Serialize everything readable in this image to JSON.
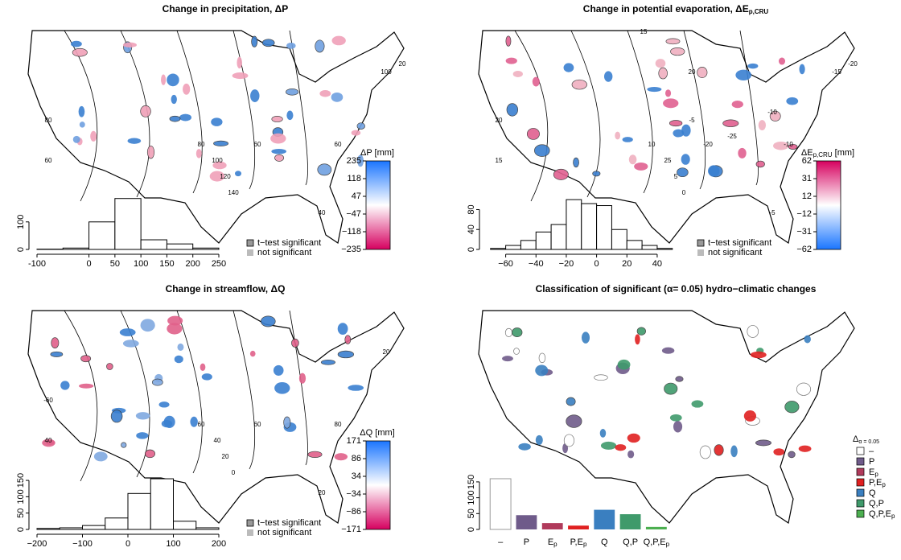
{
  "chart_data": [
    {
      "type": "histogram",
      "title": "Change in precipitation, ΔP",
      "bins": [
        -100,
        -50,
        0,
        50,
        100,
        150,
        200,
        250
      ],
      "counts": [
        1,
        5,
        100,
        185,
        35,
        20,
        5
      ],
      "xlim": [
        -100,
        250
      ],
      "xticks": [
        -100,
        0,
        50,
        100,
        150,
        200,
        250
      ],
      "ylim": [
        0,
        190
      ],
      "yticks": [
        0,
        100
      ],
      "colorbar_label": "ΔP [mm]",
      "colorbar_ticks": [
        235,
        118,
        47,
        {
          "value": -47,
          "label": "−47"
        },
        {
          "value": -118,
          "label": "−118"
        },
        {
          "value": -235,
          "label": "−235"
        }
      ],
      "colorbar_colors": [
        "#d6005f",
        "#ffffff",
        "#1a75ff"
      ],
      "legend": [
        "t−test significant",
        "not significant"
      ],
      "contour_labels": [
        "80",
        "60",
        "80",
        "60",
        "100",
        "120",
        "140",
        "40",
        "60",
        "100",
        "20"
      ]
    },
    {
      "type": "histogram",
      "title": "Change in potential evaporation, ΔE",
      "title_sub": "p,CRU",
      "bins": [
        -70,
        -60,
        -50,
        -40,
        -30,
        -20,
        -10,
        0,
        10,
        20,
        30,
        40,
        50
      ],
      "counts": [
        2,
        8,
        18,
        35,
        50,
        100,
        92,
        88,
        40,
        18,
        8,
        2
      ],
      "xlim": [
        -72,
        48
      ],
      "xticks": [
        {
          "value": -60,
          "label": "−60"
        },
        {
          "value": -40,
          "label": "−40"
        },
        {
          "value": -20,
          "label": "−20"
        },
        0,
        20,
        40
      ],
      "ylim": [
        0,
        105
      ],
      "yticks": [
        0,
        40,
        80
      ],
      "colorbar_label": "ΔE",
      "colorbar_label_sub": "p,CRU",
      "colorbar_label_unit": " [mm]",
      "colorbar_ticks": [
        62,
        31,
        12,
        {
          "value": -12,
          "label": "−12"
        },
        {
          "value": -31,
          "label": "−31"
        },
        {
          "value": -62,
          "label": "−62"
        }
      ],
      "colorbar_colors": [
        "#1a75ff",
        "#ffffff",
        "#d6005f"
      ],
      "legend": [
        "t−test significant",
        "not significant"
      ],
      "contour_labels": [
        "20",
        "15",
        "10",
        "-20",
        "25",
        "5",
        "0",
        "-5",
        "-10",
        "-15",
        "-20",
        "-25",
        "-10",
        "-5",
        "20",
        "15"
      ]
    },
    {
      "type": "histogram",
      "title": "Change in streamflow, ΔQ",
      "bins": [
        -200,
        -150,
        -100,
        -50,
        0,
        50,
        100,
        150,
        200
      ],
      "counts": [
        3,
        5,
        12,
        35,
        110,
        155,
        25,
        5
      ],
      "xlim": [
        -200,
        200
      ],
      "xticks": [
        {
          "value": -200,
          "label": "−200"
        },
        {
          "value": -100,
          "label": "−100"
        },
        0,
        100,
        200
      ],
      "ylim": [
        0,
        160
      ],
      "yticks": [
        0,
        50,
        100,
        150
      ],
      "colorbar_label": "ΔQ [mm]",
      "colorbar_ticks": [
        171,
        86,
        34,
        {
          "value": -34,
          "label": "−34"
        },
        {
          "value": -86,
          "label": "−86"
        },
        {
          "value": -171,
          "label": "−171"
        }
      ],
      "colorbar_colors": [
        "#d6005f",
        "#ffffff",
        "#1a75ff"
      ],
      "legend": [
        "t−test significant",
        "not significant"
      ],
      "contour_labels": [
        "-60",
        "40",
        "60",
        "60",
        "40",
        "20",
        "0",
        "20",
        "80",
        "20"
      ]
    },
    {
      "type": "bar",
      "title": "Classification of significant (α= 0.05) hydro−climatic changes",
      "categories": [
        "–",
        "P",
        "Ep",
        "P,Ep",
        "Q",
        "Q,P",
        "Q,P,Ep"
      ],
      "values": [
        160,
        45,
        20,
        12,
        62,
        48,
        8
      ],
      "colors": [
        "#ffffff",
        "#6f5b8a",
        "#b03a5b",
        "#e02020",
        "#3a7fc0",
        "#3f9a6b",
        "#4caf50"
      ],
      "ylim": [
        0,
        165
      ],
      "yticks": [
        0,
        50,
        100,
        150
      ],
      "legend_title": "Δ",
      "legend_title_sub": "α = 0.05"
    }
  ]
}
